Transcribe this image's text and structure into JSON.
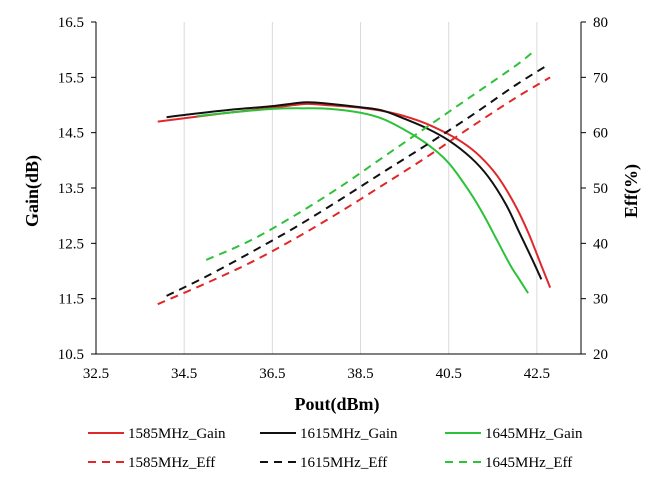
{
  "chart_data": {
    "type": "line",
    "title": "",
    "xlabel": "Pout(dBm)",
    "ylabel": "Gain(dB)",
    "y2label": "Eff(%)",
    "xlim": [
      32.5,
      43.5
    ],
    "ylim": [
      10.5,
      16.5
    ],
    "y2lim": [
      20,
      80
    ],
    "x_ticks": [
      "32.5",
      "34.5",
      "36.5",
      "38.5",
      "40.5",
      "42.5"
    ],
    "y_ticks": [
      "10.5",
      "11.5",
      "12.5",
      "13.5",
      "14.5",
      "15.5",
      "16.5"
    ],
    "y2_ticks": [
      "20",
      "30",
      "40",
      "50",
      "60",
      "70",
      "80"
    ],
    "grid": "vertical",
    "legend": "bottom",
    "series": [
      {
        "name": "1585MHz_Gain",
        "axis": "left",
        "color": "#e0282a",
        "dash": "solid",
        "x": [
          33.9,
          34.5,
          35.5,
          36.5,
          37.0,
          37.3,
          37.7,
          38.5,
          39.2,
          39.8,
          40.3,
          40.8,
          41.2,
          41.6,
          42.0,
          42.3,
          42.6,
          42.8
        ],
        "y": [
          14.7,
          14.76,
          14.86,
          14.95,
          15.0,
          15.02,
          15.0,
          14.95,
          14.86,
          14.72,
          14.55,
          14.33,
          14.08,
          13.72,
          13.2,
          12.7,
          12.1,
          11.7
        ]
      },
      {
        "name": "1615MHz_Gain",
        "axis": "left",
        "color": "#111111",
        "dash": "solid",
        "x": [
          34.1,
          34.5,
          35.5,
          36.5,
          37.0,
          37.3,
          37.7,
          38.5,
          39.0,
          39.5,
          40.0,
          40.5,
          41.0,
          41.4,
          41.8,
          42.1,
          42.4,
          42.6
        ],
        "y": [
          14.78,
          14.82,
          14.91,
          14.98,
          15.03,
          15.05,
          15.03,
          14.96,
          14.9,
          14.75,
          14.58,
          14.36,
          14.05,
          13.7,
          13.2,
          12.7,
          12.2,
          11.85
        ]
      },
      {
        "name": "1645MHz_Gain",
        "axis": "left",
        "color": "#2ec13a",
        "dash": "solid",
        "x": [
          34.8,
          35.5,
          36.5,
          37.2,
          37.8,
          38.5,
          39.0,
          39.5,
          40.0,
          40.5,
          41.0,
          41.3,
          41.6,
          41.9,
          42.1,
          42.3
        ],
        "y": [
          14.8,
          14.86,
          14.93,
          14.94,
          14.93,
          14.86,
          14.75,
          14.55,
          14.3,
          13.95,
          13.4,
          13.0,
          12.55,
          12.1,
          11.85,
          11.6
        ]
      },
      {
        "name": "1585MHz_Eff",
        "axis": "right",
        "color": "#e0282a",
        "dash": "dashed",
        "x": [
          33.9,
          35.0,
          36.0,
          37.0,
          38.0,
          39.0,
          40.0,
          41.0,
          42.0,
          42.8
        ],
        "y": [
          29.0,
          32.8,
          36.5,
          40.8,
          45.5,
          50.5,
          55.6,
          61.0,
          66.2,
          70.0
        ]
      },
      {
        "name": "1615MHz_Eff",
        "axis": "right",
        "color": "#111111",
        "dash": "dashed",
        "x": [
          34.1,
          35.0,
          36.0,
          37.0,
          38.0,
          39.0,
          40.0,
          41.0,
          42.0,
          42.7
        ],
        "y": [
          30.5,
          34.0,
          38.3,
          42.8,
          47.7,
          52.8,
          57.8,
          63.0,
          68.5,
          72.0
        ]
      },
      {
        "name": "1645MHz_Eff",
        "axis": "right",
        "color": "#2ec13a",
        "dash": "dashed",
        "x": [
          35.0,
          36.0,
          37.0,
          38.0,
          39.0,
          40.0,
          41.0,
          42.0,
          42.4
        ],
        "y": [
          37.0,
          40.5,
          45.0,
          50.0,
          55.5,
          61.0,
          66.5,
          72.0,
          74.5
        ]
      }
    ]
  }
}
